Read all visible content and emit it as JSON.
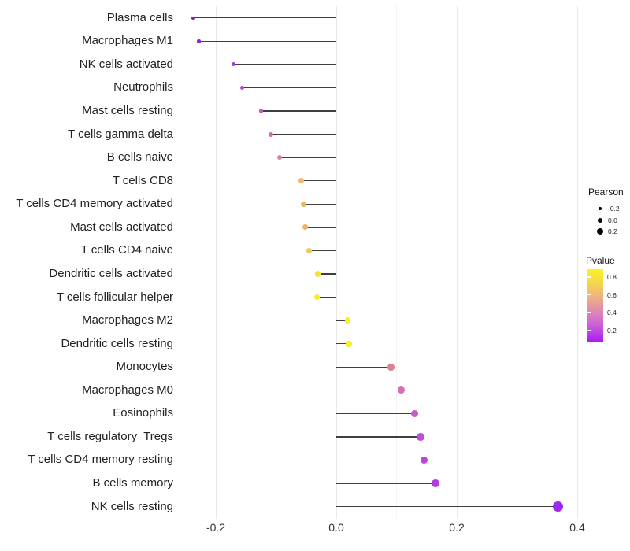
{
  "chart_data": {
    "type": "scatter",
    "style": "horizontal lollipop (stem from zero to dot); dot size = Pearson, dot color = Pvalue",
    "title": "",
    "xlabel": "",
    "ylabel": "",
    "xlim": [
      -0.27,
      0.45
    ],
    "grid": "vertical gridlines only, light gray, major and minor",
    "x_ticks": [
      {
        "value": -0.2,
        "label": "-0.2"
      },
      {
        "value": 0.0,
        "label": "0.0"
      },
      {
        "value": 0.2,
        "label": "0.2"
      },
      {
        "value": 0.4,
        "label": "0.4"
      }
    ],
    "x_minor_ticks": [
      -0.1,
      0.1,
      0.3
    ],
    "stem_color": "#3f3f3f",
    "rows": [
      {
        "label": "Plasma cells",
        "pearson": -0.238,
        "pvalue": 0.09,
        "color": "#7f22c7"
      },
      {
        "label": "Macrophages M1",
        "pearson": -0.228,
        "pvalue": 0.1,
        "color": "#8a25d3"
      },
      {
        "label": "NK cells activated",
        "pearson": -0.171,
        "pvalue": 0.22,
        "color": "#af36dd"
      },
      {
        "label": "Neutrophils",
        "pearson": -0.156,
        "pvalue": 0.26,
        "color": "#b944d6"
      },
      {
        "label": "Mast cells resting",
        "pearson": -0.125,
        "pvalue": 0.35,
        "color": "#c85ac4"
      },
      {
        "label": "T cells gamma delta",
        "pearson": -0.108,
        "pvalue": 0.43,
        "color": "#d26cac"
      },
      {
        "label": "B cells naive",
        "pearson": -0.094,
        "pvalue": 0.5,
        "color": "#dc8295"
      },
      {
        "label": "T cells CD8",
        "pearson": -0.058,
        "pvalue": 0.69,
        "color": "#f0ba6c"
      },
      {
        "label": "T cells CD4 memory activated",
        "pearson": -0.054,
        "pvalue": 0.68,
        "color": "#efb566"
      },
      {
        "label": "Mast cells activated",
        "pearson": -0.052,
        "pvalue": 0.67,
        "color": "#efb362"
      },
      {
        "label": "T cells CD4 naive",
        "pearson": -0.045,
        "pvalue": 0.73,
        "color": "#f1c854"
      },
      {
        "label": "Dendritic cells activated",
        "pearson": -0.031,
        "pvalue": 0.81,
        "color": "#f3e434"
      },
      {
        "label": "T cells follicular helper",
        "pearson": -0.032,
        "pvalue": 0.84,
        "color": "#f5ec2b"
      },
      {
        "label": "Macrophages M2",
        "pearson": 0.019,
        "pvalue": 0.88,
        "color": "#f7f21a"
      },
      {
        "label": "Dendritic cells resting",
        "pearson": 0.021,
        "pvalue": 0.88,
        "color": "#f7f21a"
      },
      {
        "label": "Monocytes",
        "pearson": 0.091,
        "pvalue": 0.5,
        "color": "#db8191"
      },
      {
        "label": "Macrophages M0",
        "pearson": 0.108,
        "pvalue": 0.42,
        "color": "#d26fb9"
      },
      {
        "label": "Eosinophils",
        "pearson": 0.13,
        "pvalue": 0.34,
        "color": "#c95bc9"
      },
      {
        "label": "T cells regulatory  Tregs",
        "pearson": 0.14,
        "pvalue": 0.3,
        "color": "#bf4dd9"
      },
      {
        "label": "T cells CD4 memory resting",
        "pearson": 0.146,
        "pvalue": 0.27,
        "color": "#b847dd"
      },
      {
        "label": "B cells memory",
        "pearson": 0.165,
        "pvalue": 0.22,
        "color": "#b23be4"
      },
      {
        "label": "NK cells resting",
        "pearson": 0.368,
        "pvalue": 0.07,
        "color": "#9d28ef"
      }
    ],
    "legend_size": {
      "title": "Pearson",
      "dot_color": "#000000",
      "entries": [
        {
          "label": "-0.2",
          "value": -0.2
        },
        {
          "label": "0.0",
          "value": 0.0
        },
        {
          "label": "0.2",
          "value": 0.2
        }
      ]
    },
    "legend_color": {
      "title": "Pvalue",
      "bar_value_top": 0.889,
      "bar_value_bottom": 0.067,
      "ticks": [
        {
          "label": "0.8",
          "value": 0.8
        },
        {
          "label": "0.6",
          "value": 0.6
        },
        {
          "label": "0.4",
          "value": 0.4
        },
        {
          "label": "0.2",
          "value": 0.2
        }
      ],
      "gradient": [
        "#f9f321",
        "#f6e13e",
        "#f3cb5f",
        "#efb280",
        "#e697a0",
        "#da7fbd",
        "#cb63d5",
        "#b940e7",
        "#a816f3"
      ]
    }
  }
}
